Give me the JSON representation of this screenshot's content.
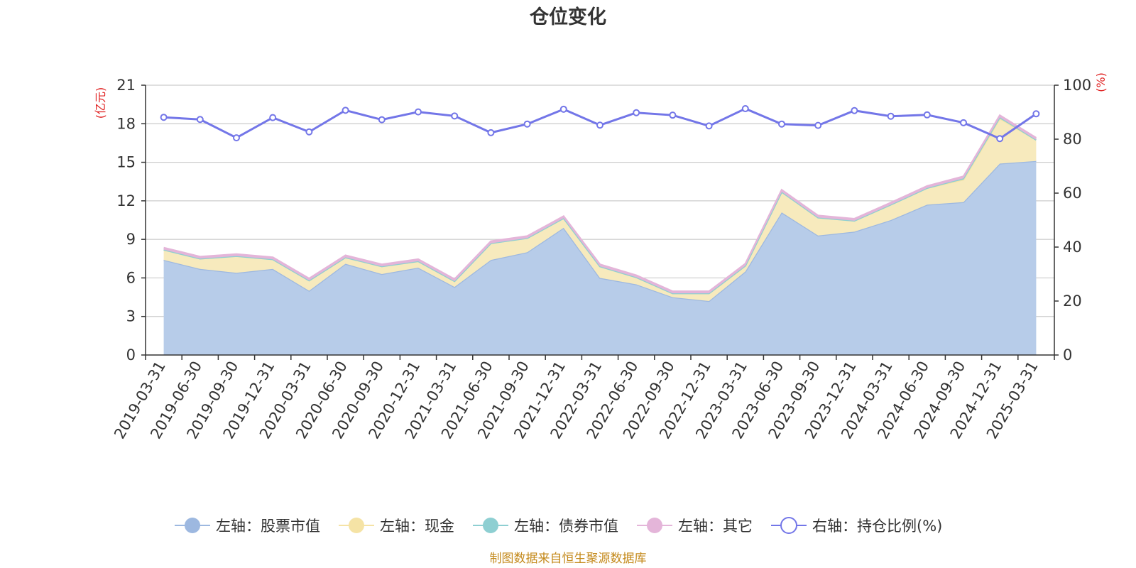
{
  "chart_data": {
    "type": "area",
    "title": "仓位变化",
    "left_axis_unit": "(亿元)",
    "right_axis_unit": "(%)",
    "ylim_left": [
      0,
      21
    ],
    "yticks_left": [
      0,
      3,
      6,
      9,
      12,
      15,
      18,
      21
    ],
    "ylim_right": [
      0,
      100
    ],
    "yticks_right": [
      0,
      20,
      40,
      60,
      80,
      100
    ],
    "grid": true,
    "legend_position": "bottom",
    "categories": [
      "2019-03-31",
      "2019-06-30",
      "2019-09-30",
      "2019-12-31",
      "2020-03-31",
      "2020-06-30",
      "2020-09-30",
      "2020-12-31",
      "2021-03-31",
      "2021-06-30",
      "2021-09-30",
      "2021-12-31",
      "2022-03-31",
      "2022-06-30",
      "2022-09-30",
      "2022-12-31",
      "2023-03-31",
      "2023-06-30",
      "2023-09-30",
      "2023-12-31",
      "2024-03-31",
      "2024-06-30",
      "2024-09-30",
      "2024-12-31",
      "2025-03-31"
    ],
    "series": [
      {
        "name": "左轴：股票市值",
        "axis": "left",
        "kind": "stacked-area",
        "color": "#9db8e0",
        "fill": "#b7cce9",
        "values": [
          7.4,
          6.7,
          6.4,
          6.7,
          5.0,
          7.1,
          6.3,
          6.8,
          5.3,
          7.4,
          8.0,
          9.9,
          6.0,
          5.5,
          4.5,
          4.2,
          6.5,
          11.1,
          9.3,
          9.6,
          10.5,
          11.7,
          11.9,
          14.9,
          15.1
        ]
      },
      {
        "name": "左轴：现金",
        "axis": "left",
        "kind": "stacked-area",
        "color": "#f5e3a5",
        "fill": "#f7eabd",
        "values": [
          0.8,
          0.8,
          1.3,
          0.75,
          0.8,
          0.5,
          0.6,
          0.5,
          0.45,
          1.3,
          1.1,
          0.75,
          0.9,
          0.55,
          0.3,
          0.6,
          0.45,
          1.6,
          1.4,
          0.85,
          1.2,
          1.3,
          1.75,
          3.5,
          1.65
        ]
      },
      {
        "name": "左轴：债券市值",
        "axis": "left",
        "kind": "stacked-area",
        "color": "#8ecfd2",
        "fill": "#8ecfd2",
        "values": [
          0,
          0,
          0,
          0,
          0,
          0,
          0,
          0,
          0,
          0,
          0,
          0,
          0,
          0,
          0,
          0,
          0,
          0,
          0,
          0,
          0,
          0,
          0.1,
          0.1,
          0
        ]
      },
      {
        "name": "左轴：其它",
        "axis": "left",
        "kind": "stacked-area",
        "color": "#e4b5d9",
        "fill": "#e4b5d9",
        "values": [
          0.15,
          0.15,
          0.15,
          0.15,
          0.15,
          0.15,
          0.15,
          0.15,
          0.15,
          0.15,
          0.15,
          0.15,
          0.15,
          0.15,
          0.15,
          0.15,
          0.15,
          0.15,
          0.15,
          0.15,
          0.15,
          0.15,
          0.15,
          0.15,
          0.15
        ]
      },
      {
        "name": "右轴：持仓比例(%)",
        "axis": "right",
        "kind": "line",
        "color": "#7376e8",
        "values": [
          88.1,
          87.3,
          80.5,
          88.0,
          82.7,
          90.7,
          87.2,
          90.1,
          88.6,
          82.4,
          85.6,
          91.1,
          85.2,
          89.8,
          88.9,
          84.9,
          91.3,
          85.6,
          85.1,
          90.6,
          88.5,
          89.0,
          86.1,
          80.2,
          89.4
        ]
      }
    ]
  },
  "source": "制图数据来自恒生聚源数据库",
  "colors": {
    "axis_unit": "#e02020",
    "source": "#c48a1c",
    "grid": "#cccccc",
    "axis": "#333333"
  }
}
